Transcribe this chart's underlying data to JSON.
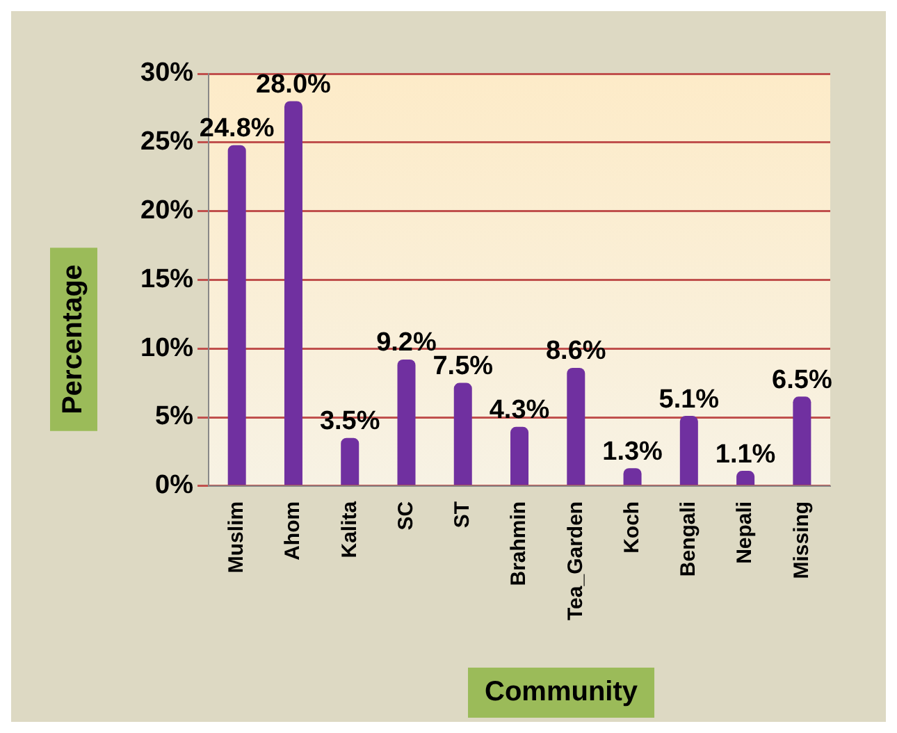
{
  "chart_data": {
    "type": "bar",
    "xlabel": "Community",
    "ylabel": "Percentage",
    "categories": [
      "Muslim",
      "Ahom",
      "Kalita",
      "SC",
      "ST",
      "Brahmin",
      "Tea_Garden",
      "Koch",
      "Bengali",
      "Nepali",
      "Missing"
    ],
    "values": [
      24.8,
      28.0,
      3.5,
      9.2,
      7.5,
      4.3,
      8.6,
      1.3,
      5.1,
      1.1,
      6.5
    ],
    "value_labels": [
      "24.8%",
      "28.0%",
      "3.5%",
      "9.2%",
      "7.5%",
      "4.3%",
      "8.6%",
      "1.3%",
      "5.1%",
      "1.1%",
      "6.5%"
    ],
    "color": "#7030a0",
    "ylim": [
      0,
      30
    ],
    "yticks": [
      {
        "value": 0,
        "label": "0%"
      },
      {
        "value": 5,
        "label": "5%"
      },
      {
        "value": 10,
        "label": "10%"
      },
      {
        "value": 15,
        "label": "15%"
      },
      {
        "value": 20,
        "label": "20%"
      },
      {
        "value": 25,
        "label": "25%"
      },
      {
        "value": 30,
        "label": "30%"
      }
    ],
    "grid": "y",
    "legend": false
  }
}
